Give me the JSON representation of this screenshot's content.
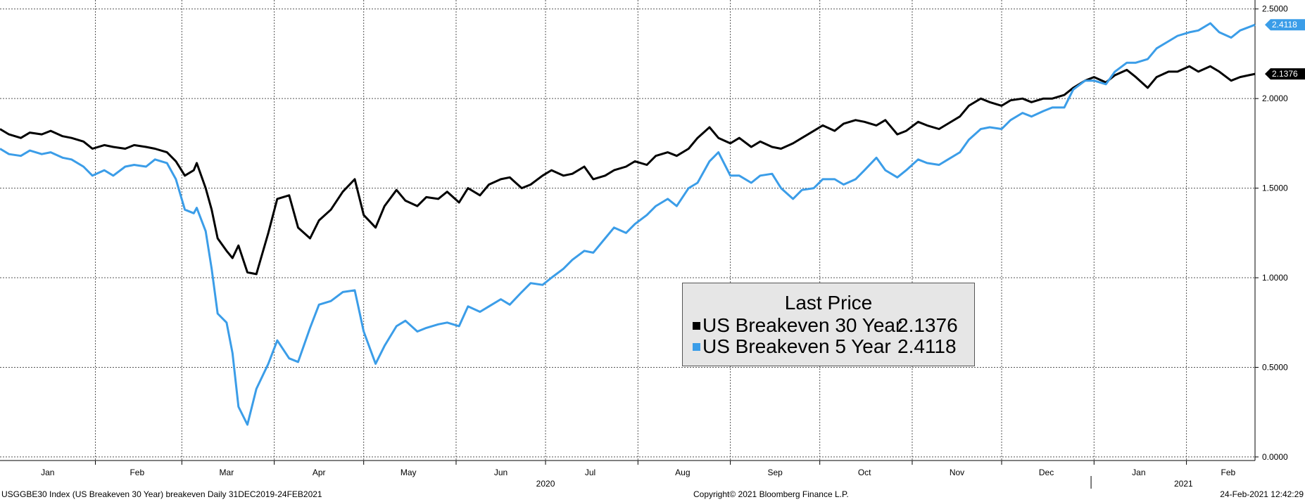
{
  "chart_data": {
    "type": "line",
    "x_start": "2019-12-31",
    "x_end": "2021-02-24",
    "x_ticks": [
      {
        "label": "Jan",
        "date": "2020-01-16"
      },
      {
        "label": "Feb",
        "date": "2020-02-15"
      },
      {
        "label": "Mar",
        "date": "2020-03-16"
      },
      {
        "label": "Apr",
        "date": "2020-04-16"
      },
      {
        "label": "May",
        "date": "2020-05-16"
      },
      {
        "label": "Jun",
        "date": "2020-06-16"
      },
      {
        "label": "Jul",
        "date": "2020-07-16"
      },
      {
        "label": "Aug",
        "date": "2020-08-16"
      },
      {
        "label": "Sep",
        "date": "2020-09-16"
      },
      {
        "label": "Oct",
        "date": "2020-10-16"
      },
      {
        "label": "Nov",
        "date": "2020-11-16"
      },
      {
        "label": "Dec",
        "date": "2020-12-16"
      },
      {
        "label": "Jan",
        "date": "2021-01-16"
      },
      {
        "label": "Feb",
        "date": "2021-02-15"
      }
    ],
    "year_labels": [
      {
        "label": "2020",
        "date": "2020-07-01"
      },
      {
        "label": "2021",
        "date": "2021-01-31"
      }
    ],
    "ylim": [
      -0.02,
      2.55
    ],
    "y_ticks": [
      {
        "label": "2.5000",
        "value": 2.5
      },
      {
        "label": "2.0000",
        "value": 2.0
      },
      {
        "label": "1.5000",
        "value": 1.5
      },
      {
        "label": "1.0000",
        "value": 1.0
      },
      {
        "label": "0.5000",
        "value": 0.5
      },
      {
        "label": "0.0000",
        "value": 0.0
      }
    ],
    "grid": true,
    "series": [
      {
        "name": "US Breakeven 30 Year",
        "color": "#000000",
        "last_label": "2.1376",
        "points": [
          [
            "2019-12-31",
            1.83
          ],
          [
            "2020-01-03",
            1.8
          ],
          [
            "2020-01-07",
            1.78
          ],
          [
            "2020-01-10",
            1.81
          ],
          [
            "2020-01-14",
            1.8
          ],
          [
            "2020-01-17",
            1.82
          ],
          [
            "2020-01-21",
            1.79
          ],
          [
            "2020-01-24",
            1.78
          ],
          [
            "2020-01-28",
            1.76
          ],
          [
            "2020-01-31",
            1.72
          ],
          [
            "2020-02-04",
            1.74
          ],
          [
            "2020-02-07",
            1.73
          ],
          [
            "2020-02-11",
            1.72
          ],
          [
            "2020-02-14",
            1.74
          ],
          [
            "2020-02-18",
            1.73
          ],
          [
            "2020-02-21",
            1.72
          ],
          [
            "2020-02-25",
            1.7
          ],
          [
            "2020-02-28",
            1.65
          ],
          [
            "2020-03-02",
            1.57
          ],
          [
            "2020-03-05",
            1.6
          ],
          [
            "2020-03-06",
            1.64
          ],
          [
            "2020-03-09",
            1.5
          ],
          [
            "2020-03-11",
            1.38
          ],
          [
            "2020-03-13",
            1.22
          ],
          [
            "2020-03-16",
            1.15
          ],
          [
            "2020-03-18",
            1.11
          ],
          [
            "2020-03-20",
            1.18
          ],
          [
            "2020-03-23",
            1.03
          ],
          [
            "2020-03-26",
            1.02
          ],
          [
            "2020-03-30",
            1.25
          ],
          [
            "2020-04-02",
            1.44
          ],
          [
            "2020-04-06",
            1.46
          ],
          [
            "2020-04-09",
            1.28
          ],
          [
            "2020-04-13",
            1.22
          ],
          [
            "2020-04-16",
            1.32
          ],
          [
            "2020-04-20",
            1.38
          ],
          [
            "2020-04-24",
            1.48
          ],
          [
            "2020-04-28",
            1.55
          ],
          [
            "2020-05-01",
            1.35
          ],
          [
            "2020-05-05",
            1.28
          ],
          [
            "2020-05-08",
            1.4
          ],
          [
            "2020-05-12",
            1.49
          ],
          [
            "2020-05-15",
            1.43
          ],
          [
            "2020-05-19",
            1.4
          ],
          [
            "2020-05-22",
            1.45
          ],
          [
            "2020-05-26",
            1.44
          ],
          [
            "2020-05-29",
            1.48
          ],
          [
            "2020-06-02",
            1.42
          ],
          [
            "2020-06-05",
            1.5
          ],
          [
            "2020-06-09",
            1.46
          ],
          [
            "2020-06-12",
            1.52
          ],
          [
            "2020-06-16",
            1.55
          ],
          [
            "2020-06-19",
            1.56
          ],
          [
            "2020-06-23",
            1.5
          ],
          [
            "2020-06-26",
            1.52
          ],
          [
            "2020-06-30",
            1.57
          ],
          [
            "2020-07-03",
            1.6
          ],
          [
            "2020-07-07",
            1.57
          ],
          [
            "2020-07-10",
            1.58
          ],
          [
            "2020-07-14",
            1.62
          ],
          [
            "2020-07-17",
            1.55
          ],
          [
            "2020-07-21",
            1.57
          ],
          [
            "2020-07-24",
            1.6
          ],
          [
            "2020-07-28",
            1.62
          ],
          [
            "2020-07-31",
            1.65
          ],
          [
            "2020-08-04",
            1.63
          ],
          [
            "2020-08-07",
            1.68
          ],
          [
            "2020-08-11",
            1.7
          ],
          [
            "2020-08-14",
            1.68
          ],
          [
            "2020-08-18",
            1.72
          ],
          [
            "2020-08-21",
            1.78
          ],
          [
            "2020-08-25",
            1.84
          ],
          [
            "2020-08-28",
            1.78
          ],
          [
            "2020-09-01",
            1.75
          ],
          [
            "2020-09-04",
            1.78
          ],
          [
            "2020-09-08",
            1.73
          ],
          [
            "2020-09-11",
            1.76
          ],
          [
            "2020-09-15",
            1.73
          ],
          [
            "2020-09-18",
            1.72
          ],
          [
            "2020-09-22",
            1.75
          ],
          [
            "2020-09-25",
            1.78
          ],
          [
            "2020-09-29",
            1.82
          ],
          [
            "2020-10-02",
            1.85
          ],
          [
            "2020-10-06",
            1.82
          ],
          [
            "2020-10-09",
            1.86
          ],
          [
            "2020-10-13",
            1.88
          ],
          [
            "2020-10-16",
            1.87
          ],
          [
            "2020-10-20",
            1.85
          ],
          [
            "2020-10-23",
            1.88
          ],
          [
            "2020-10-27",
            1.8
          ],
          [
            "2020-10-30",
            1.82
          ],
          [
            "2020-11-03",
            1.87
          ],
          [
            "2020-11-06",
            1.85
          ],
          [
            "2020-11-10",
            1.83
          ],
          [
            "2020-11-13",
            1.86
          ],
          [
            "2020-11-17",
            1.9
          ],
          [
            "2020-11-20",
            1.96
          ],
          [
            "2020-11-24",
            2.0
          ],
          [
            "2020-11-27",
            1.98
          ],
          [
            "2020-12-01",
            1.96
          ],
          [
            "2020-12-04",
            1.99
          ],
          [
            "2020-12-08",
            2.0
          ],
          [
            "2020-12-11",
            1.98
          ],
          [
            "2020-12-15",
            2.0
          ],
          [
            "2020-12-18",
            2.0
          ],
          [
            "2020-12-22",
            2.02
          ],
          [
            "2020-12-25",
            2.06
          ],
          [
            "2020-12-29",
            2.1
          ],
          [
            "2021-01-01",
            2.12
          ],
          [
            "2021-01-05",
            2.09
          ],
          [
            "2021-01-08",
            2.13
          ],
          [
            "2021-01-12",
            2.16
          ],
          [
            "2021-01-15",
            2.12
          ],
          [
            "2021-01-19",
            2.06
          ],
          [
            "2021-01-22",
            2.12
          ],
          [
            "2021-01-26",
            2.15
          ],
          [
            "2021-01-29",
            2.15
          ],
          [
            "2021-02-02",
            2.18
          ],
          [
            "2021-02-05",
            2.15
          ],
          [
            "2021-02-09",
            2.18
          ],
          [
            "2021-02-12",
            2.15
          ],
          [
            "2021-02-16",
            2.1
          ],
          [
            "2021-02-19",
            2.12
          ],
          [
            "2021-02-24",
            2.1376
          ]
        ]
      },
      {
        "name": "US Breakeven 5 Year",
        "color": "#3b9de8",
        "last_label": "2.4118",
        "points": [
          [
            "2019-12-31",
            1.72
          ],
          [
            "2020-01-03",
            1.69
          ],
          [
            "2020-01-07",
            1.68
          ],
          [
            "2020-01-10",
            1.71
          ],
          [
            "2020-01-14",
            1.69
          ],
          [
            "2020-01-17",
            1.7
          ],
          [
            "2020-01-21",
            1.67
          ],
          [
            "2020-01-24",
            1.66
          ],
          [
            "2020-01-28",
            1.62
          ],
          [
            "2020-01-31",
            1.57
          ],
          [
            "2020-02-04",
            1.6
          ],
          [
            "2020-02-07",
            1.57
          ],
          [
            "2020-02-11",
            1.62
          ],
          [
            "2020-02-14",
            1.63
          ],
          [
            "2020-02-18",
            1.62
          ],
          [
            "2020-02-21",
            1.66
          ],
          [
            "2020-02-25",
            1.64
          ],
          [
            "2020-02-28",
            1.55
          ],
          [
            "2020-03-02",
            1.38
          ],
          [
            "2020-03-05",
            1.36
          ],
          [
            "2020-03-06",
            1.39
          ],
          [
            "2020-03-09",
            1.26
          ],
          [
            "2020-03-11",
            1.05
          ],
          [
            "2020-03-13",
            0.8
          ],
          [
            "2020-03-16",
            0.75
          ],
          [
            "2020-03-18",
            0.58
          ],
          [
            "2020-03-20",
            0.28
          ],
          [
            "2020-03-23",
            0.18
          ],
          [
            "2020-03-26",
            0.38
          ],
          [
            "2020-03-30",
            0.52
          ],
          [
            "2020-04-02",
            0.65
          ],
          [
            "2020-04-06",
            0.55
          ],
          [
            "2020-04-09",
            0.53
          ],
          [
            "2020-04-13",
            0.72
          ],
          [
            "2020-04-16",
            0.85
          ],
          [
            "2020-04-20",
            0.87
          ],
          [
            "2020-04-24",
            0.92
          ],
          [
            "2020-04-28",
            0.93
          ],
          [
            "2020-05-01",
            0.7
          ],
          [
            "2020-05-05",
            0.52
          ],
          [
            "2020-05-08",
            0.62
          ],
          [
            "2020-05-12",
            0.73
          ],
          [
            "2020-05-15",
            0.76
          ],
          [
            "2020-05-19",
            0.7
          ],
          [
            "2020-05-22",
            0.72
          ],
          [
            "2020-05-26",
            0.74
          ],
          [
            "2020-05-29",
            0.75
          ],
          [
            "2020-06-02",
            0.73
          ],
          [
            "2020-06-05",
            0.84
          ],
          [
            "2020-06-09",
            0.81
          ],
          [
            "2020-06-12",
            0.84
          ],
          [
            "2020-06-16",
            0.88
          ],
          [
            "2020-06-19",
            0.85
          ],
          [
            "2020-06-23",
            0.92
          ],
          [
            "2020-06-26",
            0.97
          ],
          [
            "2020-06-30",
            0.96
          ],
          [
            "2020-07-03",
            1.0
          ],
          [
            "2020-07-07",
            1.05
          ],
          [
            "2020-07-10",
            1.1
          ],
          [
            "2020-07-14",
            1.15
          ],
          [
            "2020-07-17",
            1.14
          ],
          [
            "2020-07-21",
            1.22
          ],
          [
            "2020-07-24",
            1.28
          ],
          [
            "2020-07-28",
            1.25
          ],
          [
            "2020-07-31",
            1.3
          ],
          [
            "2020-08-04",
            1.35
          ],
          [
            "2020-08-07",
            1.4
          ],
          [
            "2020-08-11",
            1.44
          ],
          [
            "2020-08-14",
            1.4
          ],
          [
            "2020-08-18",
            1.5
          ],
          [
            "2020-08-21",
            1.53
          ],
          [
            "2020-08-25",
            1.65
          ],
          [
            "2020-08-28",
            1.7
          ],
          [
            "2020-09-01",
            1.57
          ],
          [
            "2020-09-04",
            1.57
          ],
          [
            "2020-09-08",
            1.53
          ],
          [
            "2020-09-11",
            1.57
          ],
          [
            "2020-09-15",
            1.58
          ],
          [
            "2020-09-18",
            1.5
          ],
          [
            "2020-09-22",
            1.44
          ],
          [
            "2020-09-25",
            1.49
          ],
          [
            "2020-09-29",
            1.5
          ],
          [
            "2020-10-02",
            1.55
          ],
          [
            "2020-10-06",
            1.55
          ],
          [
            "2020-10-09",
            1.52
          ],
          [
            "2020-10-13",
            1.55
          ],
          [
            "2020-10-16",
            1.6
          ],
          [
            "2020-10-20",
            1.67
          ],
          [
            "2020-10-23",
            1.6
          ],
          [
            "2020-10-27",
            1.56
          ],
          [
            "2020-10-30",
            1.6
          ],
          [
            "2020-11-03",
            1.66
          ],
          [
            "2020-11-06",
            1.64
          ],
          [
            "2020-11-10",
            1.63
          ],
          [
            "2020-11-13",
            1.66
          ],
          [
            "2020-11-17",
            1.7
          ],
          [
            "2020-11-20",
            1.77
          ],
          [
            "2020-11-24",
            1.83
          ],
          [
            "2020-11-27",
            1.84
          ],
          [
            "2020-12-01",
            1.83
          ],
          [
            "2020-12-04",
            1.88
          ],
          [
            "2020-12-08",
            1.92
          ],
          [
            "2020-12-11",
            1.9
          ],
          [
            "2020-12-15",
            1.93
          ],
          [
            "2020-12-18",
            1.95
          ],
          [
            "2020-12-22",
            1.95
          ],
          [
            "2020-12-25",
            2.05
          ],
          [
            "2020-12-29",
            2.1
          ],
          [
            "2021-01-01",
            2.1
          ],
          [
            "2021-01-05",
            2.08
          ],
          [
            "2021-01-08",
            2.15
          ],
          [
            "2021-01-12",
            2.2
          ],
          [
            "2021-01-15",
            2.2
          ],
          [
            "2021-01-19",
            2.22
          ],
          [
            "2021-01-22",
            2.28
          ],
          [
            "2021-01-26",
            2.32
          ],
          [
            "2021-01-29",
            2.35
          ],
          [
            "2021-02-02",
            2.37
          ],
          [
            "2021-02-05",
            2.38
          ],
          [
            "2021-02-09",
            2.42
          ],
          [
            "2021-02-12",
            2.37
          ],
          [
            "2021-02-16",
            2.34
          ],
          [
            "2021-02-19",
            2.38
          ],
          [
            "2021-02-24",
            2.4118
          ]
        ]
      }
    ],
    "legend": {
      "title": "Last Price",
      "entries": [
        {
          "name": "US Breakeven 30 Year",
          "value": "2.1376"
        },
        {
          "name": "US Breakeven 5 Year",
          "value": "2.4118"
        }
      ],
      "placement": "lower-center-right"
    }
  },
  "footer": {
    "left": "USGGBE30 Index (US Breakeven 30 Year) breakeven  Daily 31DEC2019-24FEB2021",
    "center": "Copyright© 2021 Bloomberg Finance L.P.",
    "right": "24-Feb-2021 12:42:29"
  }
}
